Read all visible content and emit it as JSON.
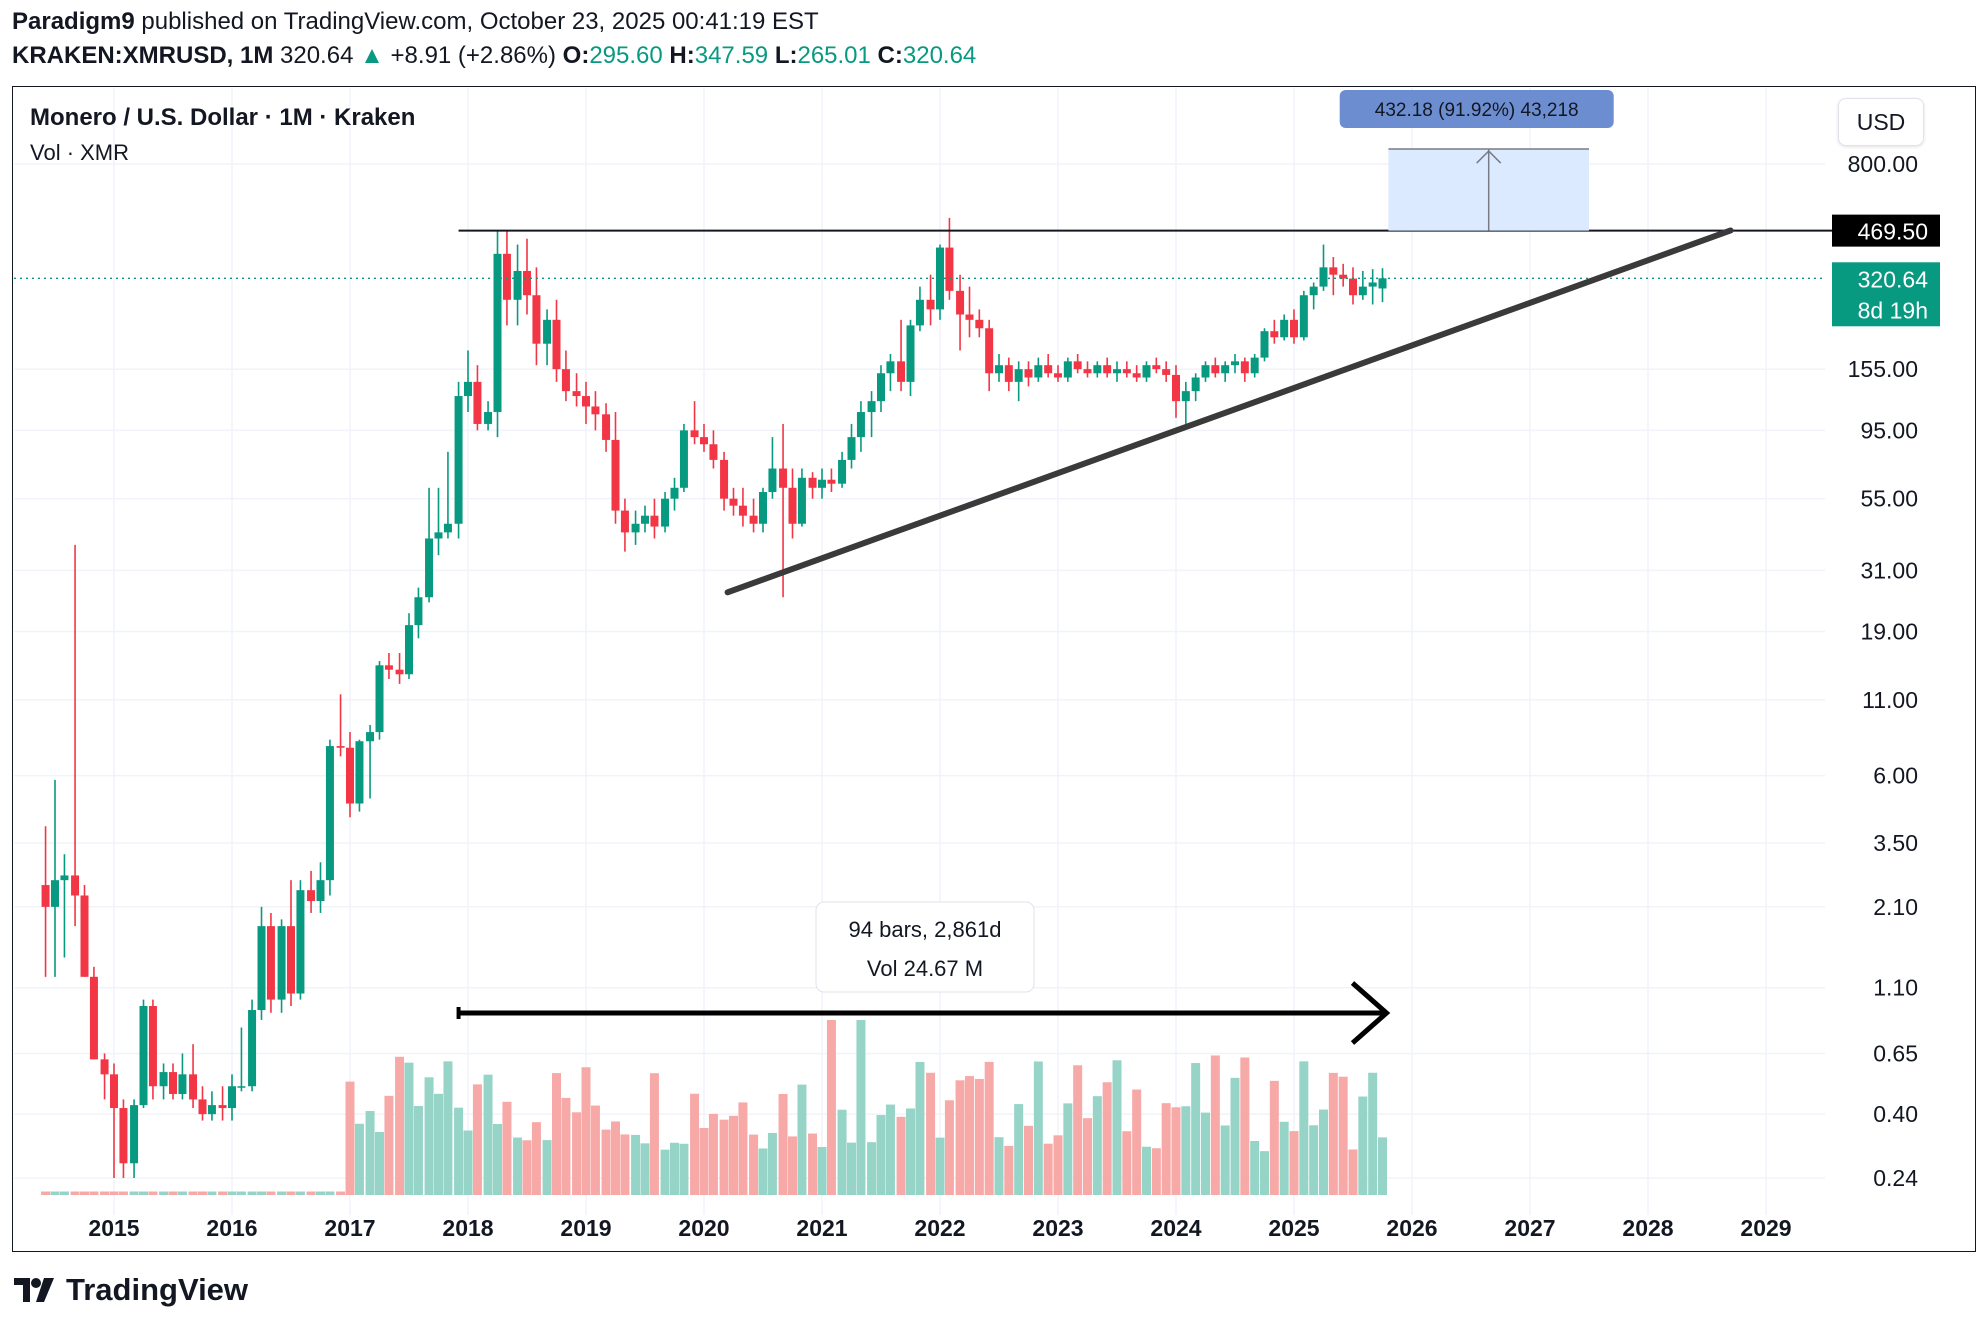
{
  "header": {
    "publisher": "Paradigm9",
    "published_text": " published on TradingView.com, October 23, 2025 00:41:19 EST",
    "symbol": "KRAKEN:XMRUSD, 1M",
    "price": "320.64",
    "change_arrow": "▲",
    "change": "+8.91 (+2.86%)",
    "o_label": "O:",
    "o_value": "295.60",
    "h_label": "H:",
    "h_value": "347.59",
    "l_label": "L:",
    "l_value": "265.01",
    "c_label": "C:",
    "c_value": "320.64"
  },
  "legend": {
    "title": "Monero / U.S. Dollar · 1M · Kraken",
    "volume": "Vol · XMR"
  },
  "currency_button": "USD",
  "price_badges": {
    "resistance": "469.50",
    "last_price": "320.64",
    "countdown": "8d 19h"
  },
  "measure_label": "432.18 (91.92%) 43,218",
  "range_tooltip": {
    "line1": "94 bars, 2,861d",
    "line2": "Vol 24.67 M"
  },
  "brand": "TradingView",
  "colors": {
    "up": "#089981",
    "down": "#f23645",
    "up_vol": "#97d4c8",
    "down_vol": "#f7a9a7",
    "measure_fill": "#dbeafe",
    "measure_label_bg": "#6c8ed1"
  },
  "chart_data": {
    "type": "candlestick",
    "title": "Monero / U.S. Dollar · 1M · Kraken",
    "y_scale": "log",
    "y_ticks": [
      800,
      469.5,
      320.64,
      155,
      95,
      55,
      31,
      19,
      11,
      6,
      3.5,
      2.1,
      1.1,
      0.65,
      0.4,
      0.24
    ],
    "y_tick_labels": [
      "800.00",
      "155.00",
      "95.00",
      "55.00",
      "31.00",
      "19.00",
      "11.00",
      "6.00",
      "3.50",
      "2.10",
      "1.10",
      "0.65",
      "0.40",
      "0.24"
    ],
    "x_tick_labels": [
      "2015",
      "2016",
      "2017",
      "2018",
      "2019",
      "2020",
      "2021",
      "2022",
      "2023",
      "2024",
      "2025",
      "2026",
      "2027",
      "2028",
      "2029"
    ],
    "x_range": [
      2014.33,
      2029.7
    ],
    "approx_closes": [
      {
        "t": 2014.42,
        "o": 2.5,
        "h": 4.0,
        "l": 1.2,
        "c": 2.1
      },
      {
        "t": 2014.5,
        "o": 2.1,
        "h": 5.8,
        "l": 1.2,
        "c": 2.6
      },
      {
        "t": 2014.58,
        "o": 2.6,
        "h": 3.2,
        "l": 1.4,
        "c": 2.7
      },
      {
        "t": 2014.67,
        "o": 2.7,
        "h": 38,
        "l": 1.8,
        "c": 2.3
      },
      {
        "t": 2014.75,
        "o": 2.3,
        "h": 2.5,
        "l": 1.2,
        "c": 1.2
      },
      {
        "t": 2014.83,
        "o": 1.2,
        "h": 1.3,
        "l": 0.62,
        "c": 0.62
      },
      {
        "t": 2014.92,
        "o": 0.62,
        "h": 0.65,
        "l": 0.45,
        "c": 0.55
      },
      {
        "t": 2015.0,
        "o": 0.55,
        "h": 0.6,
        "l": 0.24,
        "c": 0.42
      },
      {
        "t": 2015.08,
        "o": 0.42,
        "h": 0.45,
        "l": 0.24,
        "c": 0.27
      },
      {
        "t": 2015.17,
        "o": 0.27,
        "h": 0.45,
        "l": 0.24,
        "c": 0.43
      },
      {
        "t": 2015.25,
        "o": 0.43,
        "h": 1.0,
        "l": 0.42,
        "c": 0.95
      },
      {
        "t": 2015.33,
        "o": 0.95,
        "h": 1.0,
        "l": 0.45,
        "c": 0.5
      },
      {
        "t": 2015.42,
        "o": 0.5,
        "h": 0.6,
        "l": 0.45,
        "c": 0.56
      },
      {
        "t": 2015.5,
        "o": 0.56,
        "h": 0.6,
        "l": 0.45,
        "c": 0.47
      },
      {
        "t": 2015.58,
        "o": 0.47,
        "h": 0.65,
        "l": 0.45,
        "c": 0.55
      },
      {
        "t": 2015.67,
        "o": 0.55,
        "h": 0.7,
        "l": 0.42,
        "c": 0.45
      },
      {
        "t": 2015.75,
        "o": 0.45,
        "h": 0.5,
        "l": 0.38,
        "c": 0.4
      },
      {
        "t": 2015.83,
        "o": 0.4,
        "h": 0.48,
        "l": 0.38,
        "c": 0.43
      },
      {
        "t": 2015.92,
        "o": 0.43,
        "h": 0.5,
        "l": 0.38,
        "c": 0.42
      },
      {
        "t": 2016.0,
        "o": 0.42,
        "h": 0.55,
        "l": 0.38,
        "c": 0.5
      },
      {
        "t": 2016.08,
        "o": 0.5,
        "h": 0.8,
        "l": 0.48,
        "c": 0.5
      },
      {
        "t": 2016.17,
        "o": 0.5,
        "h": 1.0,
        "l": 0.48,
        "c": 0.92
      },
      {
        "t": 2016.25,
        "o": 0.92,
        "h": 2.1,
        "l": 0.85,
        "c": 1.8
      },
      {
        "t": 2016.33,
        "o": 1.8,
        "h": 2.0,
        "l": 0.9,
        "c": 1.0
      },
      {
        "t": 2016.42,
        "o": 1.0,
        "h": 1.9,
        "l": 0.9,
        "c": 1.8
      },
      {
        "t": 2016.5,
        "o": 1.8,
        "h": 2.6,
        "l": 0.95,
        "c": 1.05
      },
      {
        "t": 2016.58,
        "o": 1.05,
        "h": 2.6,
        "l": 1.0,
        "c": 2.4
      },
      {
        "t": 2016.67,
        "o": 2.4,
        "h": 2.8,
        "l": 2.0,
        "c": 2.2
      },
      {
        "t": 2016.75,
        "o": 2.2,
        "h": 3.0,
        "l": 2.0,
        "c": 2.6
      },
      {
        "t": 2016.83,
        "o": 2.6,
        "h": 8.0,
        "l": 2.3,
        "c": 7.6
      },
      {
        "t": 2016.92,
        "o": 7.6,
        "h": 11.5,
        "l": 7.0,
        "c": 7.5
      },
      {
        "t": 2017.0,
        "o": 7.5,
        "h": 8.5,
        "l": 4.3,
        "c": 4.8
      },
      {
        "t": 2017.08,
        "o": 4.8,
        "h": 8.0,
        "l": 4.5,
        "c": 7.9
      },
      {
        "t": 2017.17,
        "o": 7.9,
        "h": 9.0,
        "l": 5.0,
        "c": 8.5
      },
      {
        "t": 2017.25,
        "o": 8.5,
        "h": 15,
        "l": 8.0,
        "c": 14.5
      },
      {
        "t": 2017.33,
        "o": 14.5,
        "h": 16,
        "l": 13,
        "c": 14
      },
      {
        "t": 2017.42,
        "o": 14,
        "h": 16,
        "l": 12.5,
        "c": 13.5
      },
      {
        "t": 2017.5,
        "o": 13.5,
        "h": 22,
        "l": 13,
        "c": 20
      },
      {
        "t": 2017.58,
        "o": 20,
        "h": 27,
        "l": 18,
        "c": 25
      },
      {
        "t": 2017.67,
        "o": 25,
        "h": 60,
        "l": 24,
        "c": 40
      },
      {
        "t": 2017.75,
        "o": 40,
        "h": 60,
        "l": 35,
        "c": 42
      },
      {
        "t": 2017.83,
        "o": 42,
        "h": 80,
        "l": 40,
        "c": 45
      },
      {
        "t": 2017.92,
        "o": 45,
        "h": 140,
        "l": 40,
        "c": 125
      },
      {
        "t": 2018.0,
        "o": 125,
        "h": 180,
        "l": 110,
        "c": 140
      },
      {
        "t": 2018.08,
        "o": 140,
        "h": 160,
        "l": 95,
        "c": 100
      },
      {
        "t": 2018.17,
        "o": 100,
        "h": 120,
        "l": 95,
        "c": 110
      },
      {
        "t": 2018.25,
        "o": 110,
        "h": 470,
        "l": 90,
        "c": 390
      },
      {
        "t": 2018.33,
        "o": 390,
        "h": 470,
        "l": 220,
        "c": 270
      },
      {
        "t": 2018.42,
        "o": 270,
        "h": 420,
        "l": 220,
        "c": 340
      },
      {
        "t": 2018.5,
        "o": 340,
        "h": 440,
        "l": 240,
        "c": 280
      },
      {
        "t": 2018.58,
        "o": 280,
        "h": 350,
        "l": 160,
        "c": 190
      },
      {
        "t": 2018.67,
        "o": 190,
        "h": 250,
        "l": 160,
        "c": 230
      },
      {
        "t": 2018.75,
        "o": 230,
        "h": 270,
        "l": 140,
        "c": 155
      },
      {
        "t": 2018.83,
        "o": 155,
        "h": 180,
        "l": 120,
        "c": 130
      },
      {
        "t": 2018.92,
        "o": 130,
        "h": 150,
        "l": 115,
        "c": 125
      },
      {
        "t": 2019.0,
        "o": 125,
        "h": 140,
        "l": 100,
        "c": 115
      },
      {
        "t": 2019.08,
        "o": 115,
        "h": 130,
        "l": 95,
        "c": 108
      },
      {
        "t": 2019.17,
        "o": 108,
        "h": 118,
        "l": 80,
        "c": 88
      },
      {
        "t": 2019.25,
        "o": 88,
        "h": 110,
        "l": 45,
        "c": 50
      },
      {
        "t": 2019.33,
        "o": 50,
        "h": 55,
        "l": 36,
        "c": 42
      },
      {
        "t": 2019.42,
        "o": 42,
        "h": 50,
        "l": 38,
        "c": 45
      },
      {
        "t": 2019.5,
        "o": 45,
        "h": 52,
        "l": 42,
        "c": 48
      },
      {
        "t": 2019.58,
        "o": 48,
        "h": 55,
        "l": 40,
        "c": 44
      },
      {
        "t": 2019.67,
        "o": 44,
        "h": 58,
        "l": 42,
        "c": 55
      },
      {
        "t": 2019.75,
        "o": 55,
        "h": 65,
        "l": 50,
        "c": 60
      },
      {
        "t": 2019.83,
        "o": 60,
        "h": 100,
        "l": 58,
        "c": 95
      },
      {
        "t": 2019.92,
        "o": 95,
        "h": 120,
        "l": 85,
        "c": 90
      },
      {
        "t": 2020.0,
        "o": 90,
        "h": 100,
        "l": 80,
        "c": 85
      },
      {
        "t": 2020.08,
        "o": 85,
        "h": 95,
        "l": 70,
        "c": 75
      },
      {
        "t": 2020.17,
        "o": 75,
        "h": 80,
        "l": 50,
        "c": 55
      },
      {
        "t": 2020.25,
        "o": 55,
        "h": 60,
        "l": 48,
        "c": 52
      },
      {
        "t": 2020.33,
        "o": 52,
        "h": 60,
        "l": 44,
        "c": 48
      },
      {
        "t": 2020.42,
        "o": 48,
        "h": 55,
        "l": 42,
        "c": 45
      },
      {
        "t": 2020.5,
        "o": 45,
        "h": 60,
        "l": 42,
        "c": 58
      },
      {
        "t": 2020.58,
        "o": 58,
        "h": 90,
        "l": 55,
        "c": 70
      },
      {
        "t": 2020.67,
        "o": 70,
        "h": 100,
        "l": 25,
        "c": 60
      },
      {
        "t": 2020.75,
        "o": 60,
        "h": 70,
        "l": 40,
        "c": 45
      },
      {
        "t": 2020.83,
        "o": 45,
        "h": 70,
        "l": 44,
        "c": 65
      },
      {
        "t": 2020.92,
        "o": 65,
        "h": 68,
        "l": 55,
        "c": 60
      },
      {
        "t": 2021.0,
        "o": 60,
        "h": 70,
        "l": 55,
        "c": 64
      },
      {
        "t": 2021.08,
        "o": 64,
        "h": 70,
        "l": 58,
        "c": 62
      },
      {
        "t": 2021.17,
        "o": 62,
        "h": 80,
        "l": 60,
        "c": 75
      },
      {
        "t": 2021.25,
        "o": 75,
        "h": 100,
        "l": 70,
        "c": 90
      },
      {
        "t": 2021.33,
        "o": 90,
        "h": 120,
        "l": 80,
        "c": 110
      },
      {
        "t": 2021.42,
        "o": 110,
        "h": 130,
        "l": 90,
        "c": 120
      },
      {
        "t": 2021.5,
        "o": 120,
        "h": 160,
        "l": 110,
        "c": 150
      },
      {
        "t": 2021.58,
        "o": 150,
        "h": 175,
        "l": 130,
        "c": 165
      },
      {
        "t": 2021.67,
        "o": 165,
        "h": 230,
        "l": 130,
        "c": 140
      },
      {
        "t": 2021.75,
        "o": 140,
        "h": 230,
        "l": 125,
        "c": 220
      },
      {
        "t": 2021.83,
        "o": 220,
        "h": 300,
        "l": 210,
        "c": 270
      },
      {
        "t": 2021.92,
        "o": 270,
        "h": 330,
        "l": 220,
        "c": 250
      },
      {
        "t": 2022.0,
        "o": 250,
        "h": 420,
        "l": 230,
        "c": 410
      },
      {
        "t": 2022.08,
        "o": 410,
        "h": 520,
        "l": 270,
        "c": 290
      },
      {
        "t": 2022.17,
        "o": 290,
        "h": 330,
        "l": 180,
        "c": 240
      },
      {
        "t": 2022.25,
        "o": 240,
        "h": 300,
        "l": 200,
        "c": 230
      }
    ],
    "annotations": {
      "horizontal_resistance": 469.5,
      "last_price": 320.64,
      "ascending_trendline": {
        "from": {
          "t": 2020.2,
          "price": 26
        },
        "to": {
          "t": 2028.7,
          "price": 470
        }
      },
      "measure_box": {
        "from_price": 469.5,
        "to_price": 901.68,
        "t_start": 2025.8,
        "t_end": 2027.5
      },
      "date_range": {
        "from": 2017.92,
        "to": 2025.75,
        "bars": 94,
        "days": 2861,
        "volume": "24.67 M"
      }
    }
  }
}
